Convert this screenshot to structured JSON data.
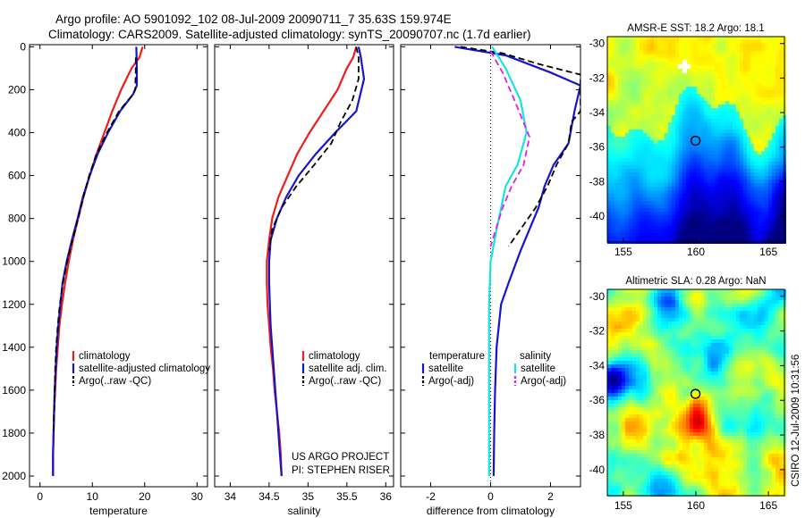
{
  "header": {
    "line1": "Argo profile: AO 5901092_102 08-Jul-2009 20090711_7 35.63S 159.974E",
    "line2": "Climatology: CARS2009. Satellite-adjusted climatology: synTS_20090707.nc (1.7d earlier)"
  },
  "footer": {
    "project": "US ARGO PROJECT",
    "pi": "PI: STEPHEN RISER",
    "credit": "CSIRO 12-Jul-2009 10:31:56"
  },
  "colors": {
    "climatology": "#ee1c1c",
    "satellite": "#1515cc",
    "argo": "#000000",
    "salinity_satellite": "#16e4e4",
    "salinity_argo": "#e21ee2",
    "sst_high": "#f2ef1e",
    "sst_low": "#00007a"
  },
  "chart_data": [
    {
      "id": "temperature",
      "type": "line",
      "xlabel": "temperature",
      "xticks": [
        0,
        10,
        20,
        30
      ],
      "xlim": [
        -2,
        32
      ],
      "ylim": [
        2050,
        -10
      ],
      "yticks": [
        0,
        200,
        400,
        600,
        800,
        1000,
        1200,
        1400,
        1600,
        1800,
        2000
      ],
      "legend": [
        "climatology",
        "satellite-adjusted climatology",
        "Argo(..raw -QC)"
      ],
      "series": [
        {
          "name": "climatology",
          "color": "#ee1c1c",
          "style": "solid",
          "points": [
            [
              19.6,
              0
            ],
            [
              19.0,
              50
            ],
            [
              17.5,
              100
            ],
            [
              15.5,
              200
            ],
            [
              13.8,
              300
            ],
            [
              12.3,
              400
            ],
            [
              10.8,
              500
            ],
            [
              9.5,
              600
            ],
            [
              8.3,
              700
            ],
            [
              7.3,
              800
            ],
            [
              6.3,
              900
            ],
            [
              5.5,
              1000
            ],
            [
              4.8,
              1100
            ],
            [
              4.2,
              1200
            ],
            [
              3.7,
              1300
            ],
            [
              3.4,
              1400
            ],
            [
              3.1,
              1500
            ],
            [
              2.9,
              1600
            ],
            [
              2.7,
              1700
            ],
            [
              2.6,
              1800
            ],
            [
              2.5,
              1900
            ],
            [
              2.5,
              2000
            ]
          ]
        },
        {
          "name": "satellite-adjusted climatology",
          "color": "#1515cc",
          "style": "solid",
          "points": [
            [
              18.4,
              0
            ],
            [
              18.5,
              100
            ],
            [
              18.5,
              180
            ],
            [
              17.8,
              220
            ],
            [
              15.3,
              300
            ],
            [
              13.0,
              400
            ],
            [
              11.0,
              500
            ],
            [
              9.5,
              600
            ],
            [
              8.2,
              700
            ],
            [
              7.2,
              800
            ],
            [
              6.1,
              900
            ],
            [
              5.1,
              1000
            ],
            [
              4.3,
              1100
            ],
            [
              3.9,
              1200
            ],
            [
              3.5,
              1300
            ],
            [
              3.2,
              1400
            ],
            [
              3.0,
              1500
            ],
            [
              2.8,
              1600
            ],
            [
              2.7,
              1700
            ],
            [
              2.6,
              1800
            ],
            [
              2.5,
              1900
            ],
            [
              2.5,
              2000
            ]
          ]
        },
        {
          "name": "Argo(..raw -QC)",
          "color": "#000000",
          "style": "dashed",
          "points": [
            [
              18.3,
              50
            ],
            [
              18.3,
              100
            ],
            [
              18.2,
              200
            ],
            [
              17.5,
              230
            ],
            [
              15.1,
              300
            ],
            [
              12.8,
              400
            ],
            [
              10.8,
              500
            ],
            [
              9.4,
              600
            ],
            [
              8.3,
              700
            ],
            [
              7.3,
              800
            ],
            [
              6.2,
              900
            ],
            [
              5.2,
              1000
            ],
            [
              4.4,
              1100
            ],
            [
              3.8,
              1200
            ],
            [
              3.4,
              1300
            ],
            [
              3.1,
              1400
            ],
            [
              2.9,
              1500
            ],
            [
              2.8,
              1600
            ],
            [
              2.7,
              1700
            ],
            [
              2.6,
              1800
            ]
          ]
        }
      ]
    },
    {
      "id": "salinity",
      "type": "line",
      "xlabel": "salinity",
      "xticks": [
        34,
        34.5,
        35,
        35.5,
        36
      ],
      "xlim": [
        33.8,
        36.1
      ],
      "ylim": [
        2050,
        -10
      ],
      "legend": [
        "climatology",
        "satellite adj. clim.",
        "Argo(..raw -QC)"
      ],
      "series": [
        {
          "name": "climatology",
          "color": "#ee1c1c",
          "style": "solid",
          "points": [
            [
              35.62,
              0
            ],
            [
              35.58,
              50
            ],
            [
              35.5,
              100
            ],
            [
              35.38,
              200
            ],
            [
              35.2,
              300
            ],
            [
              35.02,
              400
            ],
            [
              34.86,
              500
            ],
            [
              34.74,
              600
            ],
            [
              34.62,
              700
            ],
            [
              34.54,
              800
            ],
            [
              34.5,
              900
            ],
            [
              34.47,
              1000
            ],
            [
              34.47,
              1100
            ],
            [
              34.48,
              1200
            ],
            [
              34.5,
              1300
            ],
            [
              34.52,
              1400
            ],
            [
              34.55,
              1500
            ],
            [
              34.57,
              1600
            ],
            [
              34.6,
              1700
            ],
            [
              34.63,
              1800
            ],
            [
              34.65,
              1900
            ],
            [
              34.66,
              2000
            ]
          ]
        },
        {
          "name": "satellite adj. clim.",
          "color": "#1515cc",
          "style": "solid",
          "points": [
            [
              35.65,
              0
            ],
            [
              35.68,
              50
            ],
            [
              35.72,
              150
            ],
            [
              35.62,
              300
            ],
            [
              35.35,
              400
            ],
            [
              35.1,
              500
            ],
            [
              34.88,
              600
            ],
            [
              34.72,
              700
            ],
            [
              34.6,
              800
            ],
            [
              34.52,
              900
            ],
            [
              34.5,
              1000
            ],
            [
              34.5,
              1100
            ],
            [
              34.51,
              1200
            ],
            [
              34.52,
              1300
            ],
            [
              34.54,
              1400
            ],
            [
              34.56,
              1500
            ],
            [
              34.58,
              1600
            ],
            [
              34.6,
              1700
            ],
            [
              34.62,
              1800
            ],
            [
              34.64,
              1900
            ],
            [
              34.66,
              2000
            ]
          ]
        },
        {
          "name": "Argo(..raw -QC)",
          "color": "#000000",
          "style": "dashed",
          "points": [
            [
              35.62,
              0
            ],
            [
              35.65,
              50
            ],
            [
              35.65,
              150
            ],
            [
              35.57,
              250
            ],
            [
              35.42,
              350
            ],
            [
              35.3,
              450
            ],
            [
              35.08,
              550
            ],
            [
              34.85,
              650
            ],
            [
              34.66,
              750
            ],
            [
              34.54,
              850
            ],
            [
              34.5,
              950
            ]
          ]
        }
      ]
    },
    {
      "id": "difference",
      "type": "line",
      "xlabel": "difference from climatology",
      "xticks": [
        -2,
        0,
        2
      ],
      "xlim": [
        -3,
        3
      ],
      "ylim": [
        2050,
        -10
      ],
      "legend_headers": [
        "temperature",
        "salinity"
      ],
      "legend": [
        "satellite",
        "Argo(-adj)",
        "satellite",
        "Argo(-adj)"
      ],
      "series": [
        {
          "name": "temperature satellite",
          "color": "#1515cc",
          "style": "solid",
          "points": [
            [
              -1.2,
              0
            ],
            [
              0.5,
              40
            ],
            [
              2.0,
              120
            ],
            [
              3.0,
              180
            ],
            [
              2.8,
              300
            ],
            [
              2.6,
              450
            ],
            [
              2.1,
              550
            ],
            [
              1.8,
              650
            ],
            [
              1.6,
              750
            ],
            [
              1.3,
              850
            ],
            [
              1.0,
              950
            ],
            [
              0.6,
              1100
            ],
            [
              0.35,
              1200
            ],
            [
              0.2,
              1400
            ],
            [
              0.15,
              1600
            ],
            [
              0.12,
              1800
            ],
            [
              0.1,
              2000
            ]
          ]
        },
        {
          "name": "temperature Argo(-adj)",
          "color": "#000000",
          "style": "dashed",
          "points": [
            [
              -1.0,
              0
            ],
            [
              0.4,
              30
            ],
            [
              1.6,
              80
            ],
            [
              3.0,
              130
            ],
            [
              3.0,
              300
            ],
            [
              2.7,
              350
            ],
            [
              2.6,
              450
            ],
            [
              2.2,
              550
            ],
            [
              1.9,
              650
            ],
            [
              1.5,
              750
            ],
            [
              1.0,
              850
            ],
            [
              0.6,
              930
            ]
          ]
        },
        {
          "name": "salinity satellite",
          "color": "#16e4e4",
          "style": "solid",
          "points": [
            [
              0.05,
              0
            ],
            [
              0.5,
              100
            ],
            [
              1.0,
              250
            ],
            [
              1.2,
              400
            ],
            [
              0.9,
              550
            ],
            [
              0.5,
              650
            ],
            [
              0.2,
              850
            ],
            [
              0.0,
              1000
            ],
            [
              -0.05,
              1200
            ],
            [
              -0.05,
              1400
            ],
            [
              -0.05,
              2000
            ]
          ]
        },
        {
          "name": "salinity Argo(-adj)",
          "color": "#e21ee2",
          "style": "dashed",
          "points": [
            [
              0.0,
              20
            ],
            [
              0.4,
              120
            ],
            [
              0.8,
              250
            ],
            [
              1.3,
              420
            ],
            [
              1.1,
              550
            ],
            [
              0.7,
              650
            ],
            [
              0.4,
              750
            ],
            [
              0.0,
              930
            ]
          ]
        }
      ]
    },
    {
      "id": "sst_map",
      "type": "heatmap",
      "title": "AMSR-E SST: 18.2 Argo: 18.1",
      "xticks": [
        155,
        160,
        165
      ],
      "yticks": [
        -30,
        -32,
        -34,
        -36,
        -38,
        -40
      ],
      "xlim": [
        153.9,
        166.1
      ],
      "ylim": [
        -41.5,
        -29.6
      ],
      "marker": {
        "lon": 159.974,
        "lat": -35.63
      }
    },
    {
      "id": "sla_map",
      "type": "heatmap",
      "title": "Altimetric SLA: 0.28 Argo: NaN",
      "xticks": [
        155,
        160,
        165
      ],
      "yticks": [
        -30,
        -32,
        -34,
        -36,
        -38,
        -40
      ],
      "xlim": [
        153.9,
        166.1
      ],
      "ylim": [
        -41.5,
        -29.6
      ],
      "marker": {
        "lon": 159.974,
        "lat": -35.63
      }
    }
  ]
}
